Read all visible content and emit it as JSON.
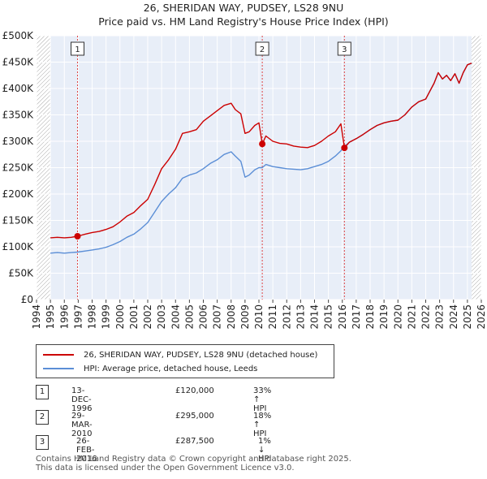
{
  "title": {
    "line1": "26, SHERIDAN WAY, PUDSEY, LS28 9NU",
    "line2": "Price paid vs. HM Land Registry's House Price Index (HPI)"
  },
  "colors": {
    "property": "#cc0000",
    "hpi": "#5b8ed6",
    "shade": "#e8eef8",
    "grid": "#ffffff",
    "vline": "#dd4444"
  },
  "legend": {
    "property_label": "26, SHERIDAN WAY, PUDSEY, LS28 9NU (detached house)",
    "hpi_label": "HPI: Average price, detached house, Leeds"
  },
  "sales": [
    {
      "num": "1",
      "date": "13-DEC-1996",
      "price": "£120,000",
      "hpi": "33% ↑ HPI"
    },
    {
      "num": "2",
      "date": "29-MAR-2010",
      "price": "£295,000",
      "hpi": "18% ↑ HPI"
    },
    {
      "num": "3",
      "date": "26-FEB-2016",
      "price": "£287,500",
      "hpi": "1% ↓ HPI"
    }
  ],
  "footer": {
    "line1": "Contains HM Land Registry data © Crown copyright and database right 2025.",
    "line2": "This data is licensed under the Open Government Licence v3.0."
  },
  "chart_data": {
    "type": "line",
    "title": "26, SHERIDAN WAY, PUDSEY, LS28 9NU — Price paid vs. HM Land Registry's House Price Index (HPI)",
    "xlabel": "",
    "ylabel": "",
    "xlim": [
      1994,
      2026
    ],
    "ylim": [
      0,
      500000
    ],
    "x_ticks": [
      1994,
      1995,
      1996,
      1997,
      1998,
      1999,
      2000,
      2001,
      2002,
      2003,
      2004,
      2005,
      2006,
      2007,
      2008,
      2009,
      2010,
      2011,
      2012,
      2013,
      2014,
      2015,
      2016,
      2017,
      2018,
      2019,
      2020,
      2021,
      2022,
      2023,
      2024,
      2025,
      2026
    ],
    "y_ticks": [
      {
        "value": 0,
        "label": "£0"
      },
      {
        "value": 50000,
        "label": "£50K"
      },
      {
        "value": 100000,
        "label": "£100K"
      },
      {
        "value": 150000,
        "label": "£150K"
      },
      {
        "value": 200000,
        "label": "£200K"
      },
      {
        "value": 250000,
        "label": "£250K"
      },
      {
        "value": 300000,
        "label": "£300K"
      },
      {
        "value": 350000,
        "label": "£350K"
      },
      {
        "value": 400000,
        "label": "£400K"
      },
      {
        "value": 450000,
        "label": "£450K"
      },
      {
        "value": 500000,
        "label": "£500K"
      }
    ],
    "data_range": [
      1995,
      2025.3
    ],
    "markers": [
      {
        "label": "1",
        "x": 1996.95,
        "y": 120000
      },
      {
        "label": "2",
        "x": 2010.24,
        "y": 295000
      },
      {
        "label": "3",
        "x": 2016.15,
        "y": 287500
      }
    ],
    "series": [
      {
        "name": "26, SHERIDAN WAY, PUDSEY, LS28 9NU (detached house)",
        "color": "#cc0000",
        "x": [
          1995,
          1995.5,
          1996,
          1996.5,
          1996.95,
          1997.5,
          1998,
          1998.5,
          1999,
          1999.5,
          2000,
          2000.5,
          2001,
          2001.5,
          2002,
          2002.5,
          2003,
          2003.5,
          2004,
          2004.5,
          2005,
          2005.5,
          2006,
          2006.5,
          2007,
          2007.5,
          2008,
          2008.3,
          2008.7,
          2009,
          2009.3,
          2009.7,
          2010,
          2010.24,
          2010.5,
          2011,
          2011.5,
          2012,
          2012.5,
          2013,
          2013.5,
          2014,
          2014.5,
          2015,
          2015.5,
          2015.9,
          2016.15,
          2016.5,
          2017,
          2017.5,
          2018,
          2018.5,
          2019,
          2019.5,
          2020,
          2020.5,
          2021,
          2021.5,
          2022,
          2022.3,
          2022.6,
          2022.9,
          2023.2,
          2023.5,
          2023.8,
          2024.1,
          2024.4,
          2024.7,
          2025.0,
          2025.3
        ],
        "y": [
          117000,
          118000,
          117000,
          118000,
          120000,
          124000,
          127000,
          129000,
          133000,
          138000,
          147000,
          158000,
          165000,
          178000,
          190000,
          218000,
          248000,
          265000,
          285000,
          315000,
          318000,
          322000,
          338000,
          348000,
          358000,
          368000,
          372000,
          360000,
          352000,
          315000,
          318000,
          330000,
          335000,
          295000,
          310000,
          300000,
          296000,
          295000,
          291000,
          289000,
          288000,
          292000,
          300000,
          310000,
          318000,
          333000,
          287500,
          298000,
          305000,
          313000,
          322000,
          330000,
          335000,
          338000,
          340000,
          350000,
          365000,
          375000,
          380000,
          395000,
          410000,
          430000,
          418000,
          425000,
          415000,
          428000,
          410000,
          430000,
          445000,
          448000
        ]
      },
      {
        "name": "HPI: Average price, detached house, Leeds",
        "color": "#5b8ed6",
        "x": [
          1995,
          1995.5,
          1996,
          1996.5,
          1996.95,
          1997.5,
          1998,
          1998.5,
          1999,
          1999.5,
          2000,
          2000.5,
          2001,
          2001.5,
          2002,
          2002.5,
          2003,
          2003.5,
          2004,
          2004.5,
          2005,
          2005.5,
          2006,
          2006.5,
          2007,
          2007.5,
          2008,
          2008.3,
          2008.7,
          2009,
          2009.3,
          2009.7,
          2010,
          2010.24,
          2010.5,
          2011,
          2011.5,
          2012,
          2012.5,
          2013,
          2013.5,
          2014,
          2014.5,
          2015,
          2015.5,
          2015.9,
          2016.15,
          2016.5,
          2017,
          2017.5,
          2018,
          2018.5,
          2019,
          2019.5,
          2020,
          2020.5,
          2021,
          2021.5,
          2022,
          2022.3,
          2022.6,
          2022.9,
          2023.2,
          2023.5,
          2023.8,
          2024.1,
          2024.4,
          2024.7,
          2025.0,
          2025.3
        ],
        "y": [
          88000,
          89000,
          88000,
          89000,
          90000,
          92000,
          94000,
          96000,
          99000,
          104000,
          110000,
          118000,
          124000,
          134000,
          146000,
          166000,
          186000,
          200000,
          212000,
          230000,
          236000,
          240000,
          248000,
          258000,
          265000,
          275000,
          280000,
          272000,
          262000,
          232000,
          236000,
          246000,
          250000,
          250000,
          256000,
          252000,
          250000,
          248000,
          247000,
          246000,
          248000,
          252000,
          256000,
          262000,
          272000,
          282000,
          290000,
          298000,
          305000,
          313000,
          322000,
          330000,
          335000,
          338000,
          340000,
          350000,
          365000,
          375000,
          380000,
          395000,
          410000,
          430000,
          418000,
          425000,
          415000,
          428000,
          410000,
          430000,
          445000,
          448000
        ]
      }
    ]
  }
}
